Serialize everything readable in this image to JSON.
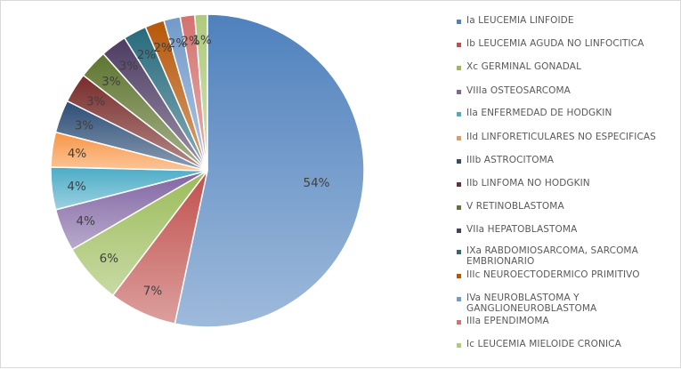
{
  "chart_data": {
    "type": "pie",
    "title": "",
    "start_angle_deg": 0,
    "direction": "clockwise",
    "labels": [
      "Ia  LEUCEMIA LINFOIDE",
      "Ib  LEUCEMIA AGUDA NO LINFOCITICA",
      "Xc  GERMINAL GONADAL",
      "VIIIa  OSTEOSARCOMA",
      "IIa  ENFERMEDAD DE HODGKIN",
      "IId  LINFORETICULARES NO ESPECIFICAS",
      "IIIb  ASTROCITOMA",
      "IIb  LINFOMA NO HODGKIN",
      "V     RETINOBLASTOMA",
      "VIIa  HEPATOBLASTOMA",
      "IXa  RABDOMIOSARCOMA, SARCOMA EMBRIONARIO",
      "IIIc  NEUROECTODERMICO PRIMITIVO",
      "IVa  NEUROBLASTOMA Y GANGLIONEUROBLASTOMA",
      "IIIa  EPENDIMOMA",
      "Ic  LEUCEMIA MIELOIDE CRONICA"
    ],
    "values": [
      53.5,
      7.0,
      6.3,
      4.4,
      4.4,
      3.6,
      3.4,
      3.1,
      3.0,
      2.7,
      2.4,
      2.0,
      1.7,
      1.5,
      1.3
    ],
    "data_labels": [
      "54%",
      "7%",
      "6%",
      "4%",
      "4%",
      "4%",
      "3%",
      "3%",
      "3%",
      "3%",
      "2%",
      "2%",
      "2%",
      "2%",
      "1%"
    ],
    "colors": [
      "#4f81bd",
      "#c0504d",
      "#9bbb59",
      "#8064a2",
      "#4bacc6",
      "#f79646",
      "#2c4d75",
      "#772c2a",
      "#5f7530",
      "#4d3b62",
      "#276a7c",
      "#b65708",
      "#729aca",
      "#d3726f",
      "#afca7b"
    ],
    "legend_position": "right"
  }
}
